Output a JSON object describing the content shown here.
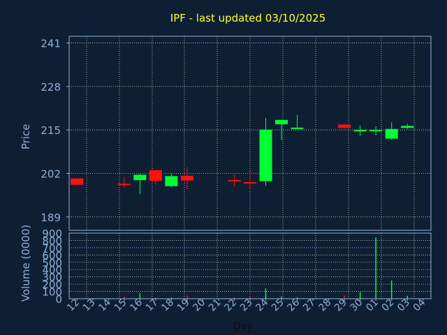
{
  "title": "IPF - last updated 03/10/2025",
  "colors": {
    "background": "#0f1f33",
    "title": "#ffff33",
    "axis_text": "#8fb0d8",
    "frame": "#8fb0d8",
    "grid": "#d0d0d0",
    "up": "#00ff33",
    "down": "#ff1111"
  },
  "chart_data": [
    {
      "type": "candlestick",
      "ylabel": "Price",
      "ylim": [
        185,
        243
      ],
      "yticks": [
        189,
        202,
        215,
        228,
        241
      ],
      "grid": true,
      "x": [
        "12",
        "13",
        "14",
        "15",
        "16",
        "17",
        "18",
        "19",
        "20",
        "21",
        "22",
        "23",
        "24",
        "25",
        "26",
        "27",
        "28",
        "29",
        "30",
        "01",
        "02",
        "03",
        "04"
      ],
      "candles": [
        {
          "day": "12",
          "open": 200.5,
          "high": 200.5,
          "low": 198.6,
          "close": 198.6
        },
        {
          "day": "15",
          "open": 198.9,
          "high": 200.8,
          "low": 197.8,
          "close": 198.7
        },
        {
          "day": "16",
          "open": 200.0,
          "high": 201.8,
          "low": 195.8,
          "close": 201.6
        },
        {
          "day": "17",
          "open": 203.0,
          "high": 203.1,
          "low": 198.7,
          "close": 199.8
        },
        {
          "day": "18",
          "open": 198.2,
          "high": 202.0,
          "low": 197.9,
          "close": 201.2
        },
        {
          "day": "19",
          "open": 201.3,
          "high": 203.8,
          "low": 197.3,
          "close": 199.9
        },
        {
          "day": "22",
          "open": 200.0,
          "high": 201.7,
          "low": 198.0,
          "close": 199.9
        },
        {
          "day": "23",
          "open": 199.4,
          "high": 202.7,
          "low": 197.1,
          "close": 199.0
        },
        {
          "day": "24",
          "open": 199.7,
          "high": 218.6,
          "low": 198.3,
          "close": 215.1
        },
        {
          "day": "25",
          "open": 216.7,
          "high": 218.1,
          "low": 212.0,
          "close": 218.0
        },
        {
          "day": "26",
          "open": 215.7,
          "high": 219.5,
          "low": 215.5,
          "close": 215.7
        },
        {
          "day": "29",
          "open": 216.6,
          "high": 216.9,
          "low": 215.4,
          "close": 215.6
        },
        {
          "day": "30",
          "open": 214.9,
          "high": 216.3,
          "low": 213.2,
          "close": 215.0
        },
        {
          "day": "01",
          "open": 214.8,
          "high": 216.1,
          "low": 213.4,
          "close": 215.0
        },
        {
          "day": "02",
          "open": 212.4,
          "high": 217.3,
          "low": 212.1,
          "close": 215.3
        },
        {
          "day": "03",
          "open": 215.6,
          "high": 216.9,
          "low": 215.3,
          "close": 216.2
        }
      ]
    },
    {
      "type": "bar",
      "ylabel": "Volume (0000)",
      "xlabel": "Day",
      "ylim": [
        0,
        900
      ],
      "yticks": [
        0,
        100,
        200,
        300,
        400,
        500,
        600,
        700,
        800,
        900
      ],
      "grid": true,
      "categories": [
        "12",
        "13",
        "14",
        "15",
        "16",
        "17",
        "18",
        "19",
        "20",
        "21",
        "22",
        "23",
        "24",
        "25",
        "26",
        "27",
        "28",
        "29",
        "30",
        "01",
        "02",
        "03",
        "04"
      ],
      "values": [
        0,
        0,
        0,
        30,
        75,
        20,
        15,
        45,
        0,
        0,
        20,
        40,
        140,
        30,
        20,
        0,
        0,
        45,
        90,
        840,
        250,
        40,
        0
      ],
      "bar_colors": [
        "down",
        "down",
        "down",
        "down",
        "up",
        "down",
        "up",
        "down",
        "down",
        "down",
        "down",
        "down",
        "up",
        "up",
        "up",
        "up",
        "up",
        "down",
        "up",
        "up",
        "up",
        "up",
        "up"
      ]
    }
  ]
}
